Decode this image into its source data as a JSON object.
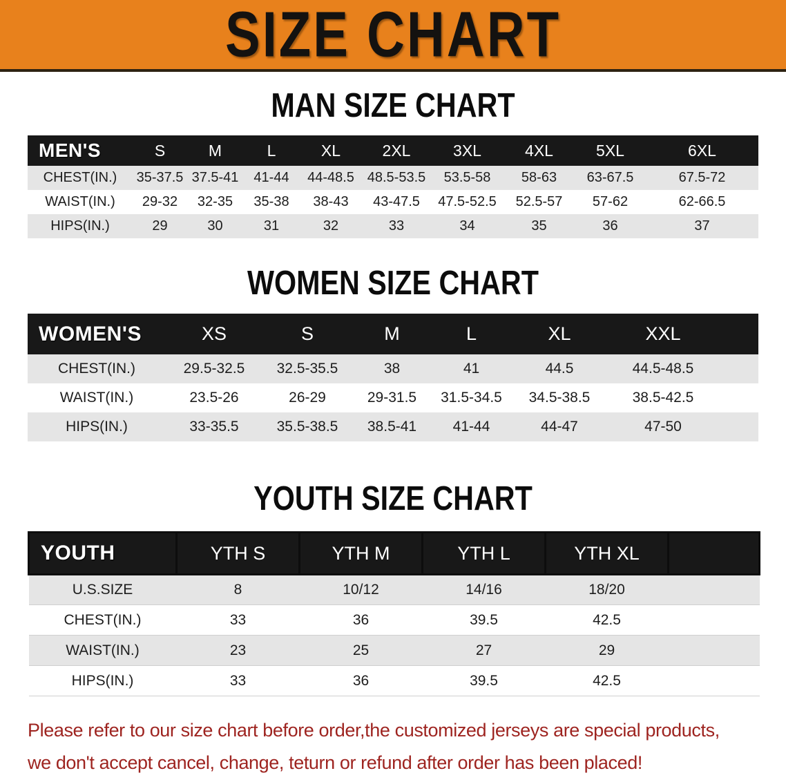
{
  "banner": {
    "title": "SIZE CHART",
    "bg_color": "#E8811C",
    "text_color": "#141210"
  },
  "colors": {
    "table_header_bg": "#181818",
    "table_header_text": "#FFFFFF",
    "row_alt_bg": "#E5E5E5",
    "row_bg": "#FFFFFF",
    "disclaimer_text": "#9E2420"
  },
  "sections": [
    {
      "id": "men",
      "title": "MAN SIZE CHART",
      "table": {
        "header_label": "MEN'S",
        "sizes": [
          "S",
          "M",
          "L",
          "XL",
          "2XL",
          "3XL",
          "4XL",
          "5XL",
          "6XL"
        ],
        "rows": [
          {
            "label": "CHEST(IN.)",
            "values": [
              "35-37.5",
              "37.5-41",
              "41-44",
              "44-48.5",
              "48.5-53.5",
              "53.5-58",
              "58-63",
              "63-67.5",
              "67.5-72"
            ]
          },
          {
            "label": "WAIST(IN.)",
            "values": [
              "29-32",
              "32-35",
              "35-38",
              "38-43",
              "43-47.5",
              "47.5-52.5",
              "52.5-57",
              "57-62",
              "62-66.5"
            ]
          },
          {
            "label": "HIPS(IN.)",
            "values": [
              "29",
              "30",
              "31",
              "32",
              "33",
              "34",
              "35",
              "36",
              "37"
            ]
          }
        ]
      }
    },
    {
      "id": "women",
      "title": "WOMEN SIZE CHART",
      "table": {
        "header_label": "WOMEN'S",
        "sizes": [
          "XS",
          "S",
          "M",
          "L",
          "XL",
          "XXL"
        ],
        "rows": [
          {
            "label": "CHEST(IN.)",
            "values": [
              "29.5-32.5",
              "32.5-35.5",
              "38",
              "41",
              "44.5",
              "44.5-48.5"
            ]
          },
          {
            "label": "WAIST(IN.)",
            "values": [
              "23.5-26",
              "26-29",
              "29-31.5",
              "31.5-34.5",
              "34.5-38.5",
              "38.5-42.5"
            ]
          },
          {
            "label": "HIPS(IN.)",
            "values": [
              "33-35.5",
              "35.5-38.5",
              "38.5-41",
              "41-44",
              "44-47",
              "47-50"
            ]
          }
        ]
      }
    },
    {
      "id": "youth",
      "title": "YOUTH SIZE CHART",
      "table": {
        "header_label": "YOUTH",
        "sizes": [
          "YTH S",
          "YTH M",
          "YTH L",
          "YTH XL"
        ],
        "rows": [
          {
            "label": "U.S.SIZE",
            "values": [
              "8",
              "10/12",
              "14/16",
              "18/20"
            ]
          },
          {
            "label": "CHEST(IN.)",
            "values": [
              "33",
              "36",
              "39.5",
              "42.5"
            ]
          },
          {
            "label": "WAIST(IN.)",
            "values": [
              "23",
              "25",
              "27",
              "29"
            ]
          },
          {
            "label": "HIPS(IN.)",
            "values": [
              "33",
              "36",
              "39.5",
              "42.5"
            ]
          }
        ]
      }
    }
  ],
  "disclaimer": {
    "line1": "Please refer to our size chart before order,the customized jerseys are special products,",
    "line2": "we don't accept cancel, change, teturn or refund after order has been placed!"
  }
}
